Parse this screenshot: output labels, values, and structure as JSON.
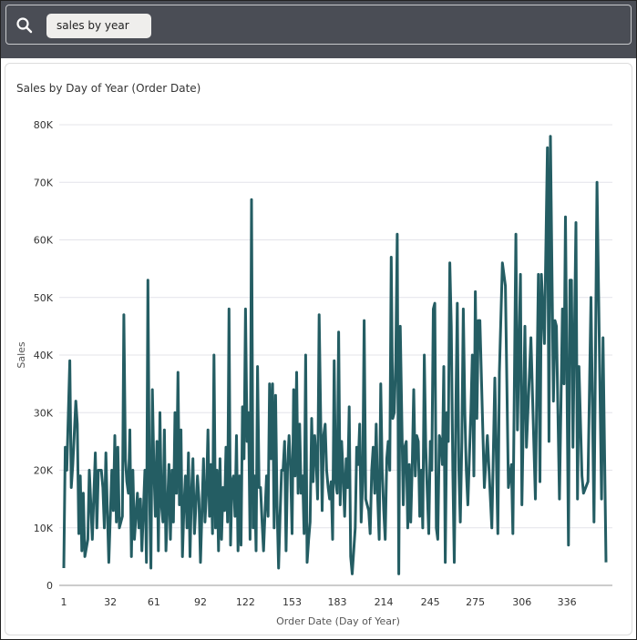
{
  "search": {
    "query": "sales by year",
    "icon": "search-icon"
  },
  "chart_data": {
    "type": "line",
    "title": "Sales by Day of Year (Order Date)",
    "xlabel": "Order Date (Day of Year)",
    "ylabel": "Sales",
    "xlim": [
      1,
      366
    ],
    "ylim": [
      0,
      80000
    ],
    "x_ticks": [
      "1",
      "32",
      "61",
      "92",
      "122",
      "153",
      "183",
      "214",
      "245",
      "275",
      "306",
      "336"
    ],
    "y_ticks": [
      "0",
      "10K",
      "20K",
      "30K",
      "40K",
      "50K",
      "60K",
      "70K",
      "80K"
    ],
    "grid": true,
    "legend": "none",
    "line_color": "#245d63",
    "series": [
      {
        "points": [
          [
            1,
            3
          ],
          [
            2,
            24
          ],
          [
            3,
            20
          ],
          [
            5,
            39
          ],
          [
            6,
            17
          ],
          [
            7,
            21
          ],
          [
            9,
            32
          ],
          [
            10,
            28
          ],
          [
            11,
            9
          ],
          [
            12,
            19
          ],
          [
            13,
            6
          ],
          [
            14,
            16
          ],
          [
            15,
            5
          ],
          [
            17,
            8
          ],
          [
            18,
            20
          ],
          [
            19,
            14
          ],
          [
            20,
            8
          ],
          [
            22,
            23
          ],
          [
            23,
            10
          ],
          [
            24,
            20
          ],
          [
            26,
            20
          ],
          [
            27,
            17
          ],
          [
            28,
            10
          ],
          [
            29,
            23
          ],
          [
            30,
            13
          ],
          [
            31,
            4
          ],
          [
            33,
            20
          ],
          [
            34,
            13
          ],
          [
            35,
            26
          ],
          [
            36,
            11
          ],
          [
            37,
            24
          ],
          [
            38,
            10
          ],
          [
            40,
            12
          ],
          [
            41,
            47
          ],
          [
            42,
            22
          ],
          [
            43,
            18
          ],
          [
            44,
            16
          ],
          [
            45,
            27
          ],
          [
            46,
            5
          ],
          [
            47,
            20
          ],
          [
            48,
            8
          ],
          [
            50,
            16
          ],
          [
            51,
            10
          ],
          [
            52,
            15
          ],
          [
            53,
            6
          ],
          [
            55,
            20
          ],
          [
            56,
            4
          ],
          [
            57,
            53
          ],
          [
            58,
            18
          ],
          [
            59,
            3
          ],
          [
            60,
            34
          ],
          [
            61,
            20
          ],
          [
            62,
            12
          ],
          [
            63,
            25
          ],
          [
            64,
            6
          ],
          [
            65,
            30
          ],
          [
            66,
            14
          ],
          [
            67,
            11
          ],
          [
            68,
            27
          ],
          [
            69,
            6
          ],
          [
            71,
            21
          ],
          [
            72,
            8
          ],
          [
            73,
            20
          ],
          [
            74,
            11
          ],
          [
            75,
            30
          ],
          [
            76,
            16
          ],
          [
            77,
            37
          ],
          [
            78,
            14
          ],
          [
            79,
            27
          ],
          [
            80,
            5
          ],
          [
            81,
            14
          ],
          [
            82,
            19
          ],
          [
            83,
            10
          ],
          [
            84,
            23
          ],
          [
            85,
            5
          ],
          [
            86,
            16
          ],
          [
            87,
            22
          ],
          [
            88,
            9
          ],
          [
            89,
            14
          ],
          [
            90,
            19
          ],
          [
            91,
            15
          ],
          [
            92,
            4
          ],
          [
            94,
            22
          ],
          [
            95,
            11
          ],
          [
            96,
            16
          ],
          [
            97,
            27
          ],
          [
            98,
            12
          ],
          [
            99,
            21
          ],
          [
            100,
            9
          ],
          [
            101,
            40
          ],
          [
            102,
            10
          ],
          [
            103,
            20
          ],
          [
            104,
            6
          ],
          [
            105,
            22
          ],
          [
            106,
            8
          ],
          [
            107,
            17
          ],
          [
            108,
            13
          ],
          [
            109,
            24
          ],
          [
            110,
            11
          ],
          [
            111,
            48
          ],
          [
            112,
            7
          ],
          [
            113,
            18
          ],
          [
            114,
            19
          ],
          [
            115,
            12
          ],
          [
            116,
            26
          ],
          [
            117,
            6
          ],
          [
            118,
            19
          ],
          [
            119,
            7
          ],
          [
            120,
            31
          ],
          [
            121,
            22
          ],
          [
            122,
            48
          ],
          [
            123,
            25
          ],
          [
            124,
            30
          ],
          [
            125,
            8
          ],
          [
            126,
            67
          ],
          [
            127,
            10
          ],
          [
            128,
            19
          ],
          [
            129,
            6
          ],
          [
            130,
            38
          ],
          [
            131,
            17
          ],
          [
            132,
            17
          ],
          [
            133,
            11
          ],
          [
            134,
            6
          ],
          [
            135,
            13
          ],
          [
            136,
            19
          ],
          [
            137,
            12
          ],
          [
            138,
            35
          ],
          [
            139,
            22
          ],
          [
            140,
            35
          ],
          [
            141,
            10
          ],
          [
            142,
            33
          ],
          [
            143,
            14
          ],
          [
            144,
            3
          ],
          [
            145,
            12
          ],
          [
            146,
            20
          ],
          [
            147,
            20
          ],
          [
            148,
            25
          ],
          [
            149,
            6
          ],
          [
            150,
            21
          ],
          [
            151,
            26
          ],
          [
            152,
            20
          ],
          [
            153,
            9
          ],
          [
            154,
            34
          ],
          [
            155,
            19
          ],
          [
            156,
            37
          ],
          [
            157,
            16
          ],
          [
            158,
            28
          ],
          [
            159,
            16
          ],
          [
            160,
            19
          ],
          [
            161,
            9
          ],
          [
            162,
            40
          ],
          [
            163,
            4
          ],
          [
            164,
            8
          ],
          [
            165,
            11
          ],
          [
            166,
            29
          ],
          [
            167,
            18
          ],
          [
            168,
            26
          ],
          [
            169,
            22
          ],
          [
            170,
            15
          ],
          [
            171,
            47
          ],
          [
            172,
            30
          ],
          [
            173,
            13
          ],
          [
            174,
            26
          ],
          [
            175,
            28
          ],
          [
            176,
            20
          ],
          [
            177,
            17
          ],
          [
            178,
            15
          ],
          [
            179,
            18
          ],
          [
            180,
            8
          ],
          [
            181,
            39
          ],
          [
            182,
            18
          ],
          [
            183,
            16
          ],
          [
            184,
            44
          ],
          [
            185,
            14
          ],
          [
            186,
            25
          ],
          [
            187,
            19
          ],
          [
            188,
            12
          ],
          [
            189,
            22
          ],
          [
            190,
            17
          ],
          [
            191,
            31
          ],
          [
            192,
            5
          ],
          [
            193,
            2
          ],
          [
            195,
            10
          ],
          [
            196,
            24
          ],
          [
            197,
            21
          ],
          [
            198,
            28
          ],
          [
            199,
            11
          ],
          [
            200,
            18
          ],
          [
            201,
            46
          ],
          [
            202,
            15
          ],
          [
            203,
            14
          ],
          [
            204,
            13
          ],
          [
            205,
            9
          ],
          [
            206,
            20
          ],
          [
            207,
            24
          ],
          [
            208,
            16
          ],
          [
            209,
            28
          ],
          [
            210,
            15
          ],
          [
            211,
            8
          ],
          [
            212,
            35
          ],
          [
            213,
            20
          ],
          [
            214,
            13
          ],
          [
            215,
            8
          ],
          [
            216,
            22
          ],
          [
            217,
            25
          ],
          [
            218,
            20
          ],
          [
            219,
            57
          ],
          [
            220,
            29
          ],
          [
            221,
            30
          ],
          [
            222,
            39
          ],
          [
            223,
            61
          ],
          [
            224,
            2
          ],
          [
            225,
            45
          ],
          [
            226,
            30
          ],
          [
            227,
            14
          ],
          [
            228,
            24
          ],
          [
            229,
            25
          ],
          [
            230,
            10
          ],
          [
            231,
            21
          ],
          [
            232,
            11
          ],
          [
            233,
            21
          ],
          [
            234,
            34
          ],
          [
            235,
            19
          ],
          [
            236,
            26
          ],
          [
            237,
            25
          ],
          [
            238,
            12
          ],
          [
            239,
            20
          ],
          [
            240,
            10
          ],
          [
            241,
            40
          ],
          [
            242,
            24
          ],
          [
            243,
            16
          ],
          [
            244,
            9
          ],
          [
            245,
            25
          ],
          [
            246,
            20
          ],
          [
            247,
            48
          ],
          [
            248,
            49
          ],
          [
            249,
            10
          ],
          [
            250,
            8
          ],
          [
            251,
            26
          ],
          [
            252,
            25
          ],
          [
            253,
            21
          ],
          [
            254,
            38
          ],
          [
            255,
            4
          ],
          [
            256,
            30
          ],
          [
            257,
            25
          ],
          [
            258,
            56
          ],
          [
            259,
            45
          ],
          [
            260,
            20
          ],
          [
            261,
            4
          ],
          [
            262,
            30
          ],
          [
            263,
            49
          ],
          [
            264,
            20
          ],
          [
            265,
            11
          ],
          [
            266,
            25
          ],
          [
            267,
            48
          ],
          [
            268,
            30
          ],
          [
            269,
            20
          ],
          [
            270,
            14
          ],
          [
            271,
            22
          ],
          [
            272,
            30
          ],
          [
            273,
            40
          ],
          [
            274,
            19
          ],
          [
            275,
            51
          ],
          [
            276,
            29
          ],
          [
            277,
            46
          ],
          [
            278,
            46
          ],
          [
            281,
            17
          ],
          [
            283,
            26
          ],
          [
            286,
            10
          ],
          [
            288,
            36
          ],
          [
            290,
            9
          ],
          [
            291,
            37
          ],
          [
            293,
            56
          ],
          [
            295,
            52
          ],
          [
            297,
            17
          ],
          [
            299,
            21
          ],
          [
            300,
            9
          ],
          [
            302,
            61
          ],
          [
            303,
            27
          ],
          [
            305,
            54
          ],
          [
            306,
            14
          ],
          [
            308,
            45
          ],
          [
            309,
            24
          ],
          [
            312,
            43
          ],
          [
            315,
            15
          ],
          [
            317,
            54
          ],
          [
            318,
            18
          ],
          [
            319,
            54
          ],
          [
            321,
            42
          ],
          [
            323,
            76
          ],
          [
            324,
            25
          ],
          [
            325,
            78
          ],
          [
            327,
            32
          ],
          [
            328,
            46
          ],
          [
            329,
            45
          ],
          [
            331,
            15
          ],
          [
            333,
            48
          ],
          [
            334,
            35
          ],
          [
            335,
            64
          ],
          [
            337,
            7
          ],
          [
            338,
            53
          ],
          [
            339,
            53
          ],
          [
            340,
            24
          ],
          [
            342,
            63
          ],
          [
            343,
            15
          ],
          [
            344,
            38
          ],
          [
            346,
            19
          ],
          [
            347,
            16
          ],
          [
            350,
            18
          ],
          [
            352,
            50
          ],
          [
            354,
            11
          ],
          [
            356,
            70
          ],
          [
            359,
            15
          ],
          [
            360,
            43
          ],
          [
            362,
            4
          ]
        ],
        "unit_multiplier": 1000
      }
    ]
  }
}
